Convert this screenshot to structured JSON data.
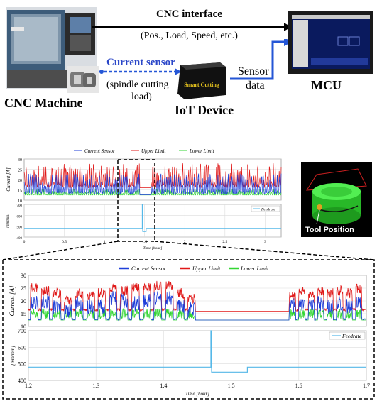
{
  "top": {
    "cnc_interface_title": "CNC interface",
    "cnc_interface_sub": "(Pos.,  Load, Speed, etc.)",
    "current_sensor": "Current sensor",
    "spindle_note_1": "(spindle cutting",
    "spindle_note_2": "load)",
    "cnc_machine": "CNC Machine",
    "iot_device": "IoT Device",
    "iot_device_brand": "Smart Cutting",
    "sensor_data_1": "Sensor",
    "sensor_data_2": "data",
    "mcu": "MCU",
    "tool_position": "Tool Position"
  },
  "colors": {
    "current": "#1f3fd9",
    "upper": "#e01818",
    "lower": "#33d633",
    "feedrate": "#55b8e8",
    "arrow_blue": "#2456d6"
  },
  "chart_data": [
    {
      "type": "line",
      "name": "overview-current",
      "series": [
        {
          "name": "Current Sensor"
        },
        {
          "name": "Upper Limit"
        },
        {
          "name": "Lower Limit"
        }
      ],
      "ylabel": "Current [A]",
      "yticks": [
        "30",
        "25",
        "20",
        "15",
        "10"
      ],
      "ylim": [
        10,
        30
      ],
      "xlim": [
        0,
        3.2
      ],
      "approx_levels": {
        "current_peak": 22,
        "upper_peak": 27,
        "lower": 13,
        "base": 13,
        "upper_idle": 16
      }
    },
    {
      "type": "line",
      "name": "overview-feedrate",
      "series": [
        {
          "name": "Feedrate"
        }
      ],
      "ylabel": "[mm/min]",
      "yticks": [
        "700",
        "600",
        "500",
        "400"
      ],
      "xticks": [
        "0",
        "0.5",
        "1",
        "1.5",
        "2",
        "2.5",
        "3"
      ],
      "xlabel": "Time [hour]",
      "ylim": [
        400,
        700
      ],
      "segments": [
        {
          "x": [
            0,
            1.47
          ],
          "y": 480
        },
        {
          "x": [
            1.47,
            1.475
          ],
          "y": 700
        },
        {
          "x": [
            1.475,
            1.52
          ],
          "y": 450
        },
        {
          "x": [
            1.52,
            3.2
          ],
          "y": 480
        }
      ]
    },
    {
      "type": "line",
      "name": "zoom-current",
      "series": [
        {
          "name": "Current Sensor"
        },
        {
          "name": "Upper Limit"
        },
        {
          "name": "Lower Limit"
        }
      ],
      "ylabel": "Current [A]",
      "yticks": [
        "30",
        "25",
        "20",
        "15",
        "10"
      ],
      "ylim": [
        10,
        30
      ],
      "xlim": [
        1.2,
        1.7
      ],
      "bursts": [
        {
          "x": [
            1.203,
            1.214
          ],
          "cur": 20,
          "up": 26
        },
        {
          "x": [
            1.219,
            1.231
          ],
          "cur": 21,
          "up": 25
        },
        {
          "x": [
            1.236,
            1.248
          ],
          "cur": 19,
          "up": 24
        },
        {
          "x": [
            1.253,
            1.264
          ],
          "cur": 17,
          "up": 21
        },
        {
          "x": [
            1.27,
            1.281
          ],
          "cur": 20,
          "up": 24
        },
        {
          "x": [
            1.287,
            1.298
          ],
          "cur": 19,
          "up": 23
        },
        {
          "x": [
            1.303,
            1.314
          ],
          "cur": 19,
          "up": 24
        },
        {
          "x": [
            1.32,
            1.331
          ],
          "cur": 22,
          "up": 26
        },
        {
          "x": [
            1.336,
            1.347
          ],
          "cur": 21,
          "up": 25
        },
        {
          "x": [
            1.353,
            1.364
          ],
          "cur": 20,
          "up": 26
        },
        {
          "x": [
            1.37,
            1.381
          ],
          "cur": 21,
          "up": 26
        },
        {
          "x": [
            1.386,
            1.397
          ],
          "cur": 22,
          "up": 27
        },
        {
          "x": [
            1.403,
            1.414
          ],
          "cur": 22,
          "up": 27
        },
        {
          "x": [
            1.42,
            1.431
          ],
          "cur": 19,
          "up": 24
        },
        {
          "x": [
            1.436,
            1.447
          ],
          "cur": 18,
          "up": 22
        },
        {
          "x": [
            1.586,
            1.595
          ],
          "cur": 19,
          "up": 23
        },
        {
          "x": [
            1.6,
            1.609
          ],
          "cur": 20,
          "up": 25
        },
        {
          "x": [
            1.614,
            1.623
          ],
          "cur": 19,
          "up": 24
        },
        {
          "x": [
            1.628,
            1.637
          ],
          "cur": 20,
          "up": 25
        },
        {
          "x": [
            1.642,
            1.651
          ],
          "cur": 19,
          "up": 24
        },
        {
          "x": [
            1.656,
            1.665
          ],
          "cur": 20,
          "up": 25
        },
        {
          "x": [
            1.67,
            1.679
          ],
          "cur": 19,
          "up": 24
        },
        {
          "x": [
            1.684,
            1.693
          ],
          "cur": 21,
          "up": 26
        }
      ],
      "base_current": 12.5,
      "upper_idle": 16
    },
    {
      "type": "line",
      "name": "zoom-feedrate",
      "series": [
        {
          "name": "Feedrate"
        }
      ],
      "ylabel": "[mm/min]",
      "yticks": [
        "700",
        "600",
        "500",
        "400"
      ],
      "xticks": [
        "1.2",
        "1.3",
        "1.4",
        "1.5",
        "1.6",
        "1.7"
      ],
      "xlabel": "Time [hour]",
      "ylim": [
        400,
        700
      ],
      "xlim": [
        1.2,
        1.7
      ],
      "segments": [
        {
          "x": [
            1.2,
            1.47
          ],
          "y": 480
        },
        {
          "x": [
            1.47,
            1.471
          ],
          "y": 700
        },
        {
          "x": [
            1.471,
            1.524
          ],
          "y": 450
        },
        {
          "x": [
            1.524,
            1.7
          ],
          "y": 480
        }
      ]
    }
  ]
}
